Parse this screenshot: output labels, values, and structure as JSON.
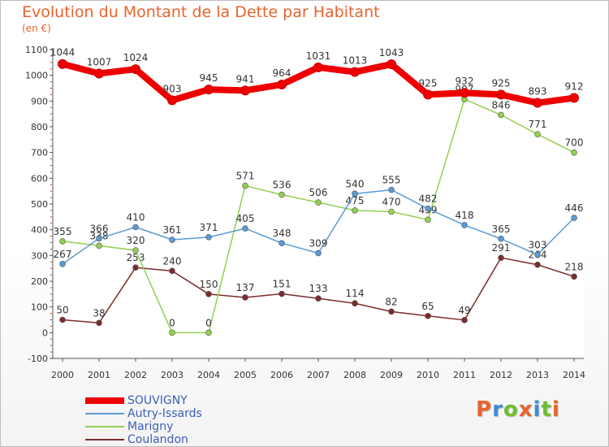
{
  "title": "Evolution du Montant de la Dette par Habitant",
  "subtitle": "(en €)",
  "brand": "Proxiti",
  "colors": {
    "title": "#e8632c",
    "legend_text": "#3a5fb4",
    "brand_letters": [
      "#e8632c",
      "#3a8fd6",
      "#6cbf2f",
      "#e8632c",
      "#3a8fd6",
      "#6cbf2f",
      "#e8632c"
    ]
  },
  "chart_data": {
    "type": "line",
    "title": "Evolution du Montant de la Dette par Habitant",
    "subtitle": "(en €)",
    "xlabel": "",
    "ylabel": "",
    "x": [
      "2000",
      "2001",
      "2002",
      "2003",
      "2004",
      "2005",
      "2006",
      "2007",
      "2008",
      "2009",
      "2010",
      "2011",
      "2012",
      "2013",
      "2014"
    ],
    "ylim": [
      -100,
      1100
    ],
    "yticks": [
      -100,
      0,
      100,
      200,
      300,
      400,
      500,
      600,
      700,
      800,
      900,
      1000,
      1100
    ],
    "grid": false,
    "legend_position": "bottom-left",
    "series": [
      {
        "name": "SOUVIGNY",
        "color": "#ee0000",
        "values": [
          1044,
          1007,
          1024,
          903,
          945,
          941,
          964,
          1031,
          1013,
          1043,
          925,
          932,
          925,
          893,
          912
        ]
      },
      {
        "name": "Autry-Issards",
        "color": "#5b9bd5",
        "values": [
          267,
          366,
          410,
          361,
          371,
          405,
          348,
          309,
          540,
          555,
          482,
          418,
          365,
          303,
          446
        ]
      },
      {
        "name": "Marigny",
        "color": "#92d050",
        "values": [
          355,
          338,
          320,
          0,
          0,
          571,
          536,
          506,
          475,
          470,
          439,
          907,
          846,
          771,
          700
        ]
      },
      {
        "name": "Coulandon",
        "color": "#7b2c2c",
        "values": [
          50,
          38,
          253,
          240,
          150,
          137,
          151,
          133,
          114,
          82,
          65,
          49,
          291,
          264,
          218
        ]
      }
    ]
  }
}
